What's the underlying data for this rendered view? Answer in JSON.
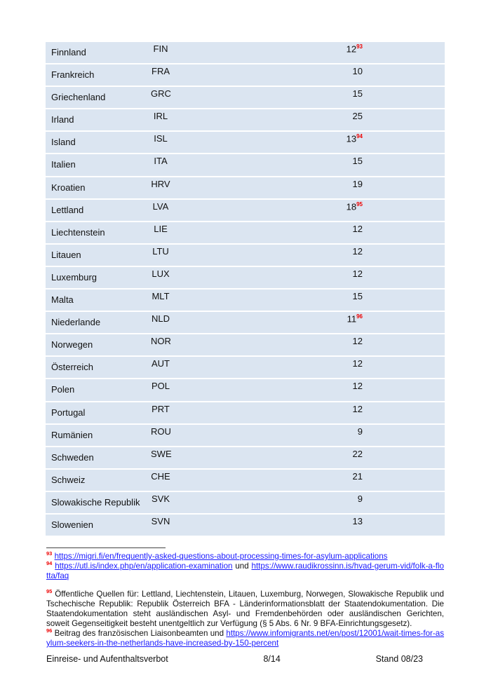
{
  "table": {
    "rows": [
      {
        "name": "Finnland",
        "code": "FIN",
        "value": "12",
        "note": "93"
      },
      {
        "name": "Frankreich",
        "code": "FRA",
        "value": "10"
      },
      {
        "name": "Griechenland",
        "code": "GRC",
        "value": "15"
      },
      {
        "name": "Irland",
        "code": "IRL",
        "value": "25"
      },
      {
        "name": "Island",
        "code": "ISL",
        "value": "13",
        "note": "94"
      },
      {
        "name": "Italien",
        "code": "ITA",
        "value": "15"
      },
      {
        "name": "Kroatien",
        "code": "HRV",
        "value": "19"
      },
      {
        "name": "Lettland",
        "code": "LVA",
        "value": "18",
        "note": "95"
      },
      {
        "name": "Liechtenstein",
        "code": "LIE",
        "value": "12"
      },
      {
        "name": "Litauen",
        "code": "LTU",
        "value": "12"
      },
      {
        "name": "Luxemburg",
        "code": "LUX",
        "value": "12"
      },
      {
        "name": "Malta",
        "code": "MLT",
        "value": "15"
      },
      {
        "name": "Niederlande",
        "code": "NLD",
        "value": "11",
        "note": "96"
      },
      {
        "name": "Norwegen",
        "code": "NOR",
        "value": "12"
      },
      {
        "name": "Österreich",
        "code": "AUT",
        "value": "12"
      },
      {
        "name": "Polen",
        "code": "POL",
        "value": "12"
      },
      {
        "name": "Portugal",
        "code": "PRT",
        "value": "12"
      },
      {
        "name": "Rumänien",
        "code": "ROU",
        "value": "9"
      },
      {
        "name": "Schweden",
        "code": "SWE",
        "value": "22"
      },
      {
        "name": "Schweiz",
        "code": "CHE",
        "value": "21"
      },
      {
        "name": "Slowakische Republik",
        "code": "SVK",
        "value": "9"
      },
      {
        "name": "Slowenien",
        "code": "SVN",
        "value": "13"
      }
    ]
  },
  "footnotes": {
    "n93": {
      "num": "93",
      "link": "https://migri.fi/en/frequently-asked-questions-about-processing-times-for-asylum-applications"
    },
    "n94": {
      "num": "94",
      "link1": "https://utl.is/index.php/en/application-examination",
      "und": " und ",
      "link2": "https://www.raudikrossinn.is/hvad-gerum-vid/folk-a-flotta/faq"
    },
    "n95": {
      "num": "95",
      "text": " Öffentliche Quellen für: Lettland, Liechtenstein, Litauen, Luxemburg, Norwegen, Slowakische Republik und Tschechische Republik: Republik Österreich BFA - Länderinformationsblatt der Staatendokumentation. Die Staatendokumentation steht ausländischen Asyl- und Fremdenbehörden oder ausländischen Gerichten, soweit Gegenseitigkeit besteht unentgeltlich zur Verfügung (§ 5 Abs. 6 Nr. 9 BFA-Einrichtungsgesetz)."
    },
    "n96": {
      "num": "96",
      "text": " Beitrag des französischen Liaisonbeamten und ",
      "link": "https://www.infomigrants.net/en/post/12001/wait-times-for-asylum-seekers-in-the-netherlands-have-increased-by-150-percent"
    }
  },
  "footer": {
    "title": "Einreise- und Aufenthaltsverbot",
    "page": "8/14",
    "stand": "Stand 08/23"
  }
}
